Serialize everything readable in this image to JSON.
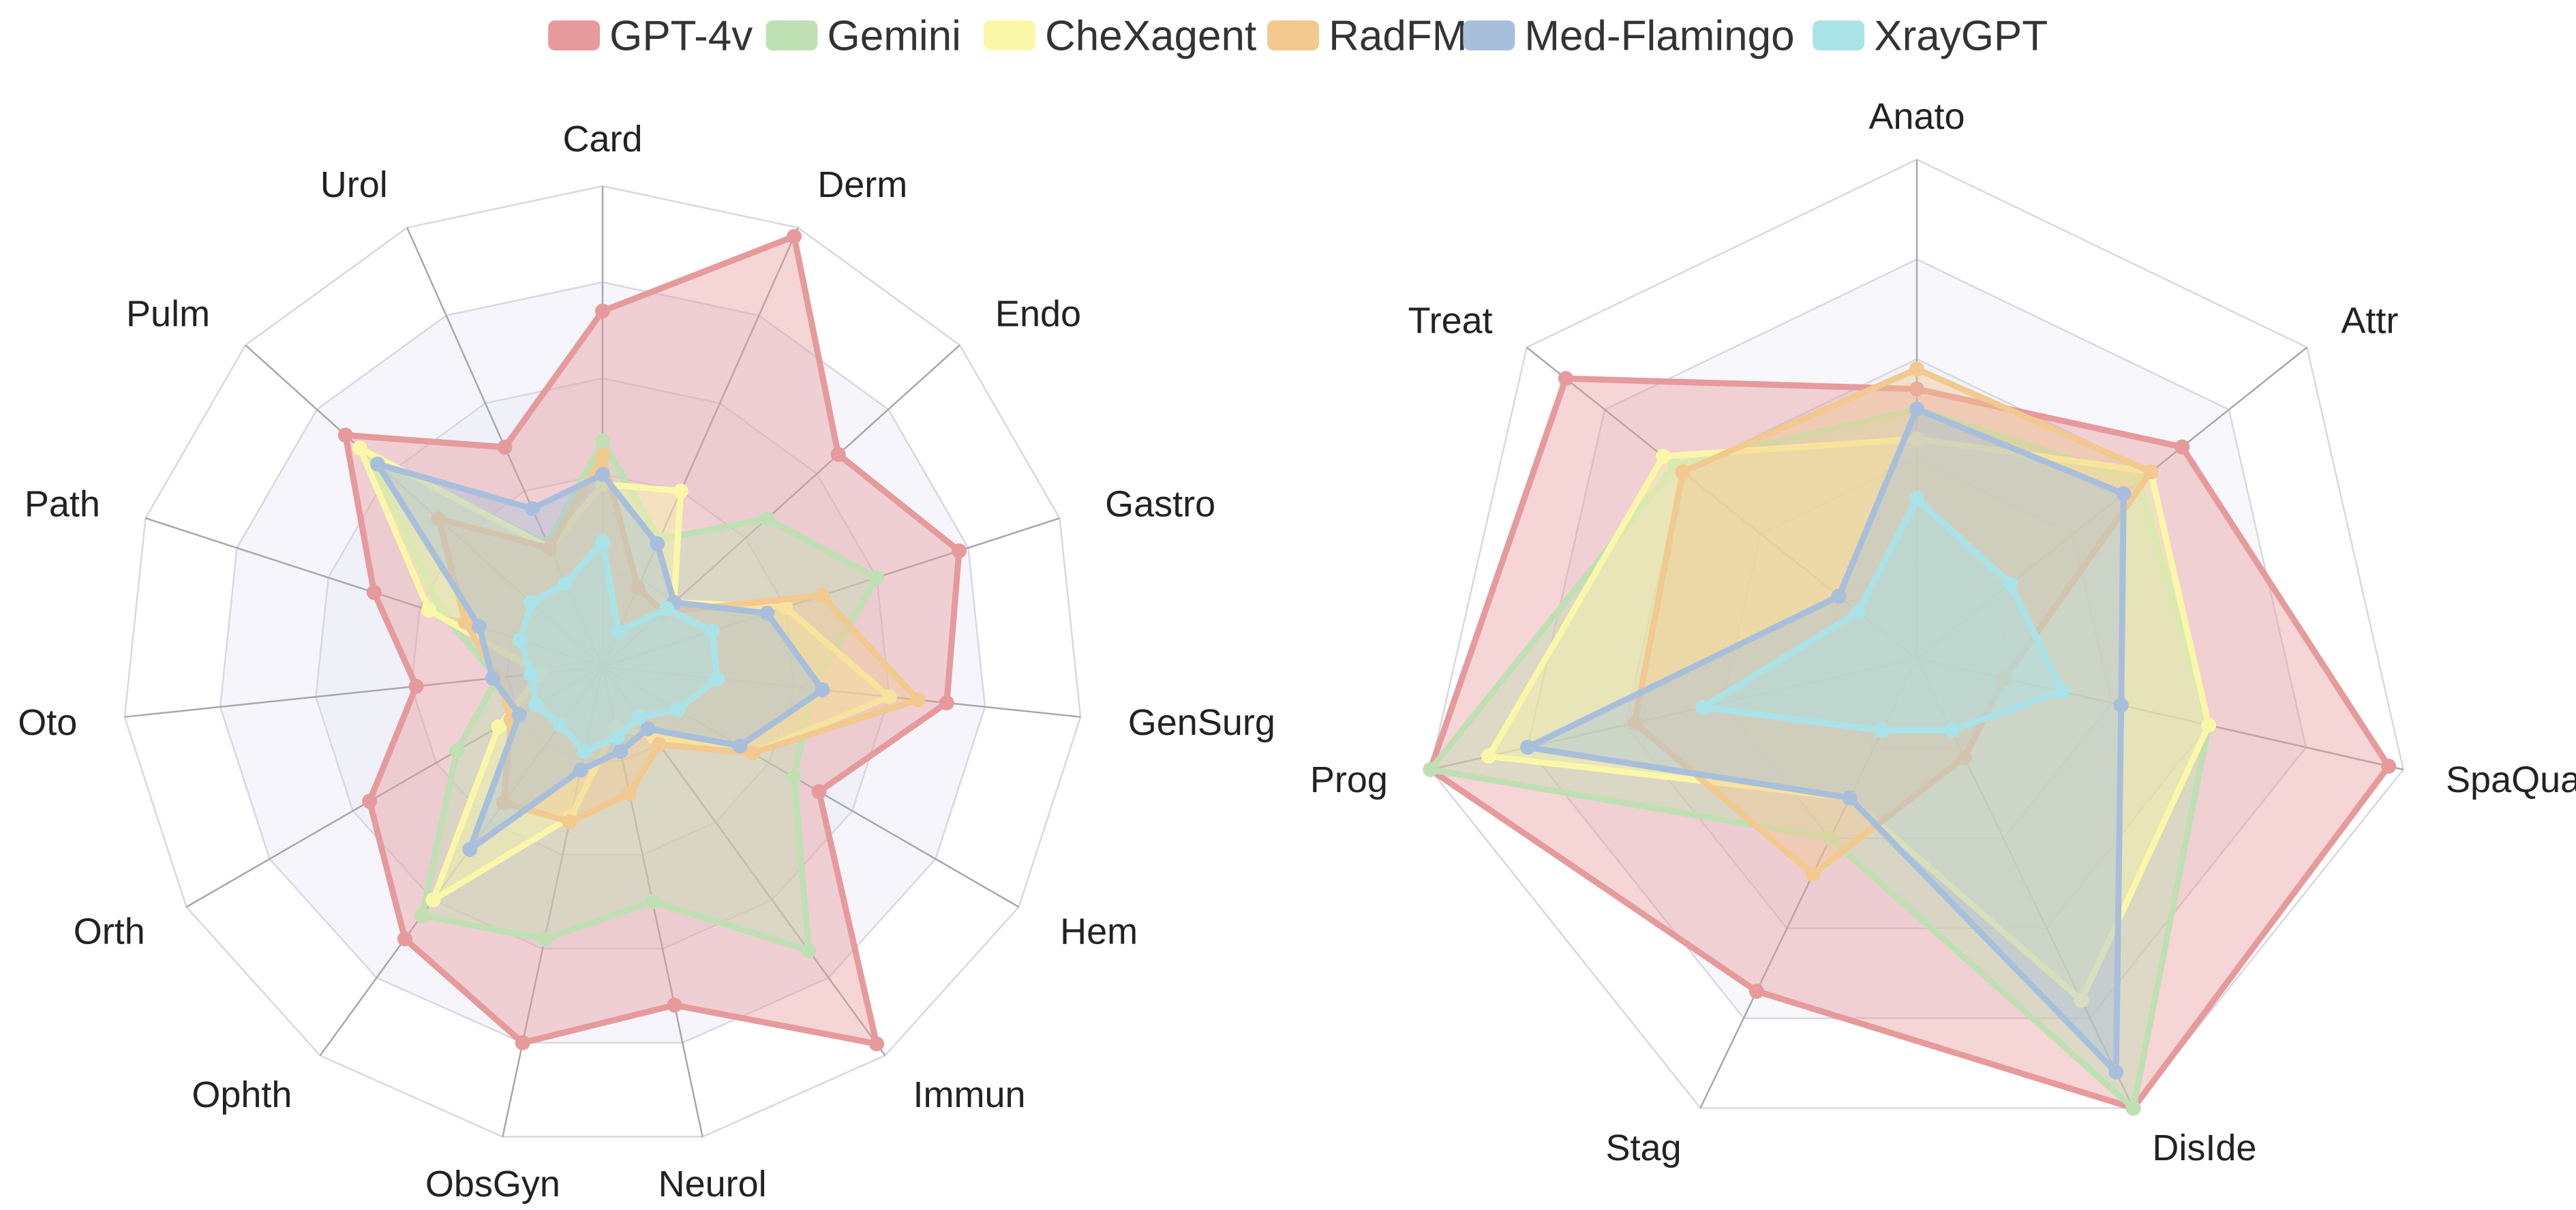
{
  "legend": {
    "position": "top-center",
    "items": [
      {
        "name": "GPT-4v",
        "color": "#E69A9B"
      },
      {
        "name": "Gemini",
        "color": "#BFE0B3"
      },
      {
        "name": "CheXagent",
        "color": "#FBF7A8"
      },
      {
        "name": "RadFM",
        "color": "#F2C98E"
      },
      {
        "name": "Med-Flamingo",
        "color": "#A8BFDB"
      },
      {
        "name": "XrayGPT",
        "color": "#A9E3E8"
      }
    ]
  },
  "chart_data": [
    {
      "type": "radar",
      "axes": [
        "Card",
        "Derm",
        "Endo",
        "Gastro",
        "GenSurg",
        "Hem",
        "Immun",
        "Neurol",
        "ObsGyn",
        "Ophth",
        "Orth",
        "Oto",
        "Path",
        "Pulm",
        "Urol"
      ],
      "range": [
        0,
        1
      ],
      "rings": 5,
      "series": [
        {
          "name": "GPT-4v",
          "color": "#E69A9B",
          "values": [
            0.74,
            0.98,
            0.66,
            0.78,
            0.72,
            0.52,
            0.97,
            0.72,
            0.8,
            0.7,
            0.56,
            0.39,
            0.5,
            0.72,
            0.5
          ]
        },
        {
          "name": "Gemini",
          "color": "#BFE0B3",
          "values": [
            0.47,
            0.29,
            0.46,
            0.6,
            0.44,
            0.46,
            0.73,
            0.5,
            0.58,
            0.64,
            0.35,
            0.22,
            0.35,
            0.65,
            0.28
          ]
        },
        {
          "name": "CheXagent",
          "color": "#FBF7A8",
          "values": [
            0.38,
            0.4,
            0.2,
            0.4,
            0.6,
            0.36,
            0.18,
            0.13,
            0.32,
            0.6,
            0.25,
            0.13,
            0.38,
            0.68,
            0.27
          ]
        },
        {
          "name": "RadFM",
          "color": "#F2C98E",
          "values": [
            0.44,
            0.18,
            0.17,
            0.48,
            0.66,
            0.36,
            0.2,
            0.27,
            0.33,
            0.35,
            0.22,
            0.22,
            0.3,
            0.46,
            0.27
          ]
        },
        {
          "name": "Med-Flamingo",
          "color": "#A8BFDB",
          "values": [
            0.4,
            0.28,
            0.2,
            0.36,
            0.46,
            0.33,
            0.16,
            0.18,
            0.22,
            0.47,
            0.2,
            0.23,
            0.27,
            0.63,
            0.36
          ]
        },
        {
          "name": "XrayGPT",
          "color": "#A9E3E8",
          "values": [
            0.26,
            0.08,
            0.18,
            0.24,
            0.24,
            0.18,
            0.13,
            0.15,
            0.18,
            0.15,
            0.16,
            0.15,
            0.18,
            0.2,
            0.19
          ]
        }
      ]
    },
    {
      "type": "radar",
      "axes": [
        "Anato",
        "Attr",
        "SpaQua",
        "DisIde",
        "Stag",
        "Prog",
        "Treat"
      ],
      "range": [
        0,
        1
      ],
      "rings": 5,
      "series": [
        {
          "name": "GPT-4v",
          "color": "#E69A9B",
          "values": [
            0.54,
            0.68,
            0.97,
            1.0,
            0.74,
            1.0,
            0.9
          ]
        },
        {
          "name": "Gemini",
          "color": "#BFE0B3",
          "values": [
            0.5,
            0.57,
            0.6,
            1.0,
            0.4,
            1.0,
            0.62
          ]
        },
        {
          "name": "CheXagent",
          "color": "#FBF7A8",
          "values": [
            0.44,
            0.6,
            0.6,
            0.76,
            0.31,
            0.88,
            0.65
          ]
        },
        {
          "name": "RadFM",
          "color": "#F2C98E",
          "values": [
            0.58,
            0.6,
            0.18,
            0.22,
            0.48,
            0.58,
            0.6
          ]
        },
        {
          "name": "Med-Flamingo",
          "color": "#A8BFDB",
          "values": [
            0.5,
            0.53,
            0.42,
            0.92,
            0.31,
            0.8,
            0.2
          ]
        },
        {
          "name": "XrayGPT",
          "color": "#A9E3E8",
          "values": [
            0.32,
            0.24,
            0.3,
            0.16,
            0.16,
            0.44,
            0.15
          ]
        }
      ]
    }
  ]
}
